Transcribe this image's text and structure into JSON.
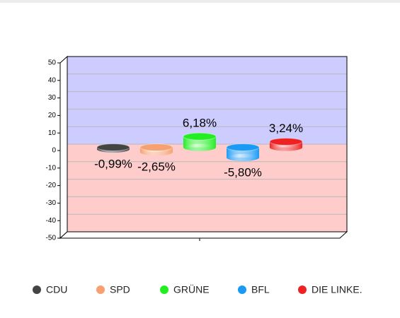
{
  "chart_data": {
    "type": "bar",
    "categories": [
      null
    ],
    "series": [
      {
        "name": "CDU",
        "color": "#444444",
        "values": [
          -0.99
        ],
        "value_labels": [
          "-0,99%"
        ]
      },
      {
        "name": "SPD",
        "color": "#f7a072",
        "values": [
          -2.65
        ],
        "value_labels": [
          "-2,65%"
        ]
      },
      {
        "name": "GRÜNE",
        "color": "#22ee22",
        "values": [
          6.18
        ],
        "value_labels": [
          "6,18%"
        ]
      },
      {
        "name": "BFL",
        "color": "#1a99f5",
        "values": [
          -5.8
        ],
        "value_labels": [
          "-5,80%"
        ]
      },
      {
        "name": "DIE LINKE.",
        "color": "#ee2222",
        "values": [
          3.24
        ],
        "value_labels": [
          "3,24%"
        ]
      }
    ],
    "ylim": [
      -50,
      50
    ],
    "yticks": [
      -50,
      -40,
      -30,
      -20,
      -10,
      0,
      10,
      20,
      30,
      40,
      50
    ],
    "grid": true,
    "legend": "bottom"
  }
}
